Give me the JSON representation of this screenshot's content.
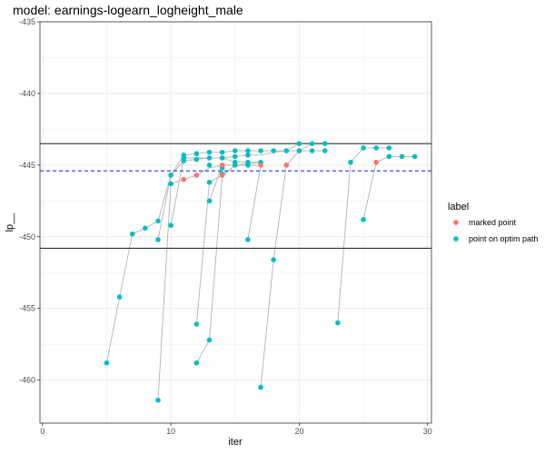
{
  "chart_data": {
    "type": "scatter",
    "title": "model: earnings-logearn_logheight_male",
    "xlabel": "iter",
    "ylabel": "lp__",
    "xlim": [
      -0.2,
      30.3
    ],
    "ylim": [
      -463,
      -435
    ],
    "x_ticks": [
      0,
      10,
      20,
      30
    ],
    "y_ticks": [
      -460,
      -455,
      -450,
      -445,
      -440,
      -435
    ],
    "grid": true,
    "legend": {
      "title": "label",
      "position": "right",
      "entries": [
        {
          "name": "marked point",
          "color": "#F8766D"
        },
        {
          "name": "point on optim path",
          "color": "#00BFC4"
        }
      ]
    },
    "reference_lines": [
      {
        "y": -443.5,
        "style": "solid",
        "color": "#333333"
      },
      {
        "y": -450.8,
        "style": "solid",
        "color": "#333333"
      },
      {
        "y": -445.4,
        "style": "dashed",
        "color": "#2B2BFF"
      }
    ],
    "paths": [
      [
        [
          5,
          -458.8
        ],
        [
          6,
          -454.2
        ],
        [
          7,
          -449.8
        ],
        [
          8,
          -449.4
        ],
        [
          9,
          -448.9
        ],
        [
          10,
          -445.7
        ],
        [
          11,
          -444.3
        ],
        [
          12,
          -444.2
        ],
        [
          13,
          -444.1
        ],
        [
          14,
          -444.1
        ],
        [
          15,
          -444.0
        ],
        [
          16,
          -444.0
        ],
        [
          17,
          -444.0
        ],
        [
          18,
          -444.0
        ],
        [
          19,
          -444.0
        ],
        [
          20,
          -444.0
        ],
        [
          21,
          -444.0
        ],
        [
          22,
          -444.0
        ]
      ],
      [
        [
          9,
          -461.4
        ],
        [
          10,
          -446.3
        ],
        [
          11,
          -446.0
        ],
        [
          12,
          -445.7
        ],
        [
          13,
          -445.2
        ],
        [
          14,
          -445.0
        ],
        [
          15,
          -445.0
        ],
        [
          16,
          -445.0
        ],
        [
          17,
          -445.0
        ]
      ],
      [
        [
          9,
          -450.2
        ],
        [
          10,
          -445.7
        ],
        [
          11,
          -444.7
        ],
        [
          12,
          -444.6
        ],
        [
          13,
          -444.5
        ],
        [
          14,
          -444.5
        ],
        [
          15,
          -444.4
        ],
        [
          16,
          -444.3
        ],
        [
          17,
          -444.3
        ],
        [
          18,
          -444.1
        ],
        [
          19,
          -444.0
        ],
        [
          20,
          -443.5
        ],
        [
          21,
          -443.5
        ],
        [
          22,
          -443.5
        ]
      ],
      [
        [
          10,
          -449.2
        ],
        [
          11,
          -444.5
        ],
        [
          12,
          -444.5
        ],
        [
          13,
          -444.5
        ],
        [
          14,
          -444.5
        ],
        [
          15,
          -444.8
        ],
        [
          16,
          -444.8
        ],
        [
          17,
          -444.8
        ]
      ],
      [
        [
          12,
          -458.8
        ],
        [
          13,
          -457.2
        ],
        [
          14,
          -445.8
        ],
        [
          15,
          -445.0
        ],
        [
          16,
          -444.9
        ],
        [
          17,
          -444.8
        ]
      ],
      [
        [
          12,
          -456.1
        ],
        [
          13,
          -446.2
        ],
        [
          14,
          -445.7
        ],
        [
          15,
          -445.0
        ]
      ],
      [
        [
          13,
          -447.5
        ],
        [
          14,
          -445.0
        ],
        [
          15,
          -445.0
        ]
      ],
      [
        [
          16,
          -450.2
        ],
        [
          17,
          -445.0
        ]
      ],
      [
        [
          17,
          -460.5
        ],
        [
          18,
          -451.6
        ],
        [
          19,
          -445.0
        ],
        [
          20,
          -444.0
        ],
        [
          21,
          -443.5
        ],
        [
          22,
          -443.5
        ]
      ],
      [
        [
          23,
          -456.0
        ],
        [
          24,
          -444.8
        ],
        [
          25,
          -443.8
        ],
        [
          26,
          -443.8
        ],
        [
          27,
          -443.8
        ]
      ],
      [
        [
          25,
          -448.8
        ],
        [
          26,
          -444.8
        ],
        [
          27,
          -444.4
        ],
        [
          28,
          -444.4
        ],
        [
          29,
          -444.4
        ]
      ]
    ],
    "series": [
      {
        "name": "marked point",
        "color": "#F8766D",
        "points": [
          [
            11,
            -446.0
          ],
          [
            12,
            -445.7
          ],
          [
            14,
            -445.0
          ],
          [
            14,
            -445.7
          ],
          [
            17,
            -445.0
          ],
          [
            19,
            -445.0
          ],
          [
            26,
            -444.8
          ]
        ]
      },
      {
        "name": "point on optim path",
        "color": "#00BFC4",
        "points": [
          [
            5,
            -458.8
          ],
          [
            6,
            -454.2
          ],
          [
            7,
            -449.8
          ],
          [
            8,
            -449.4
          ],
          [
            9,
            -448.9
          ],
          [
            9,
            -450.2
          ],
          [
            9,
            -461.4
          ],
          [
            10,
            -445.7
          ],
          [
            10,
            -446.3
          ],
          [
            10,
            -449.2
          ],
          [
            11,
            -444.3
          ],
          [
            11,
            -444.7
          ],
          [
            11,
            -444.5
          ],
          [
            12,
            -444.2
          ],
          [
            12,
            -444.6
          ],
          [
            12,
            -456.1
          ],
          [
            12,
            -458.8
          ],
          [
            13,
            -444.1
          ],
          [
            13,
            -444.5
          ],
          [
            13,
            -445.0
          ],
          [
            13,
            -446.2
          ],
          [
            13,
            -447.5
          ],
          [
            13,
            -457.2
          ],
          [
            14,
            -444.1
          ],
          [
            14,
            -444.5
          ],
          [
            14,
            -445.2
          ],
          [
            14,
            -445.6
          ],
          [
            15,
            -444.0
          ],
          [
            15,
            -444.4
          ],
          [
            15,
            -444.8
          ],
          [
            15,
            -445.0
          ],
          [
            16,
            -444.0
          ],
          [
            16,
            -444.3
          ],
          [
            16,
            -444.8
          ],
          [
            16,
            -445.0
          ],
          [
            16,
            -450.2
          ],
          [
            17,
            -444.0
          ],
          [
            17,
            -444.8
          ],
          [
            17,
            -460.5
          ],
          [
            18,
            -444.0
          ],
          [
            18,
            -451.6
          ],
          [
            19,
            -444.0
          ],
          [
            20,
            -443.5
          ],
          [
            20,
            -444.0
          ],
          [
            21,
            -443.5
          ],
          [
            21,
            -444.0
          ],
          [
            22,
            -443.5
          ],
          [
            22,
            -444.0
          ],
          [
            23,
            -456.0
          ],
          [
            24,
            -444.8
          ],
          [
            25,
            -443.8
          ],
          [
            25,
            -448.8
          ],
          [
            26,
            -443.8
          ],
          [
            27,
            -443.8
          ],
          [
            27,
            -444.4
          ],
          [
            28,
            -444.4
          ],
          [
            29,
            -444.4
          ]
        ]
      }
    ]
  }
}
